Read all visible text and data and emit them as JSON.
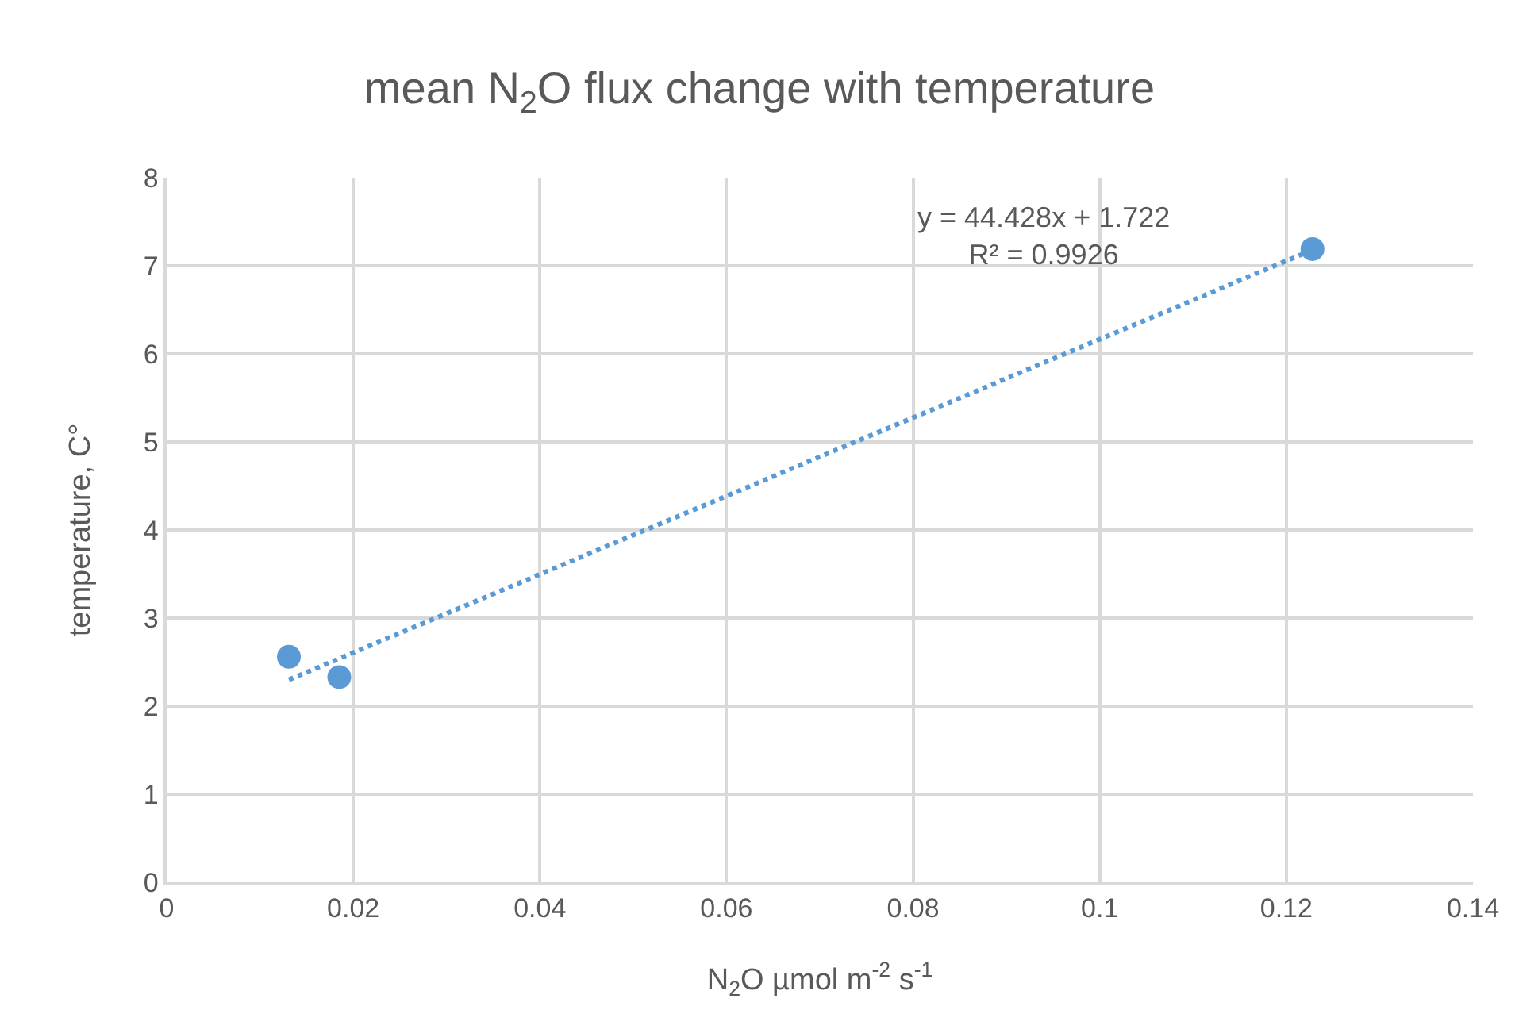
{
  "chart_data": {
    "type": "scatter",
    "title": "mean N$_{2}$O flux change with temperature",
    "xlabel": "N$_{2}$O µmol m$^{-2}$ s$^{-1}$",
    "ylabel": "temperature, C°",
    "series": [
      {
        "color": "#5b9bd5",
        "x": [
          0.0131,
          0.0185,
          0.1228
        ],
        "values": [
          2.56,
          2.33,
          7.19
        ],
        "marker": "circle"
      },
      {
        "type": "line",
        "color": "#5b9bd5",
        "x": [
          0.0131,
          0.1228
        ],
        "values": [
          2.3,
          7.18
        ],
        "marker": "none",
        "line_style": "dotted"
      }
    ],
    "annotations": [
      "y = 44.428x + 1.722\nR² = 0.9926"
    ],
    "xlim": [
      0,
      0.14
    ],
    "xticks": [
      0,
      0.02,
      0.04,
      0.06,
      0.08,
      0.1,
      0.12,
      0.14
    ],
    "ylim": [
      0,
      8
    ],
    "yticks": [
      0,
      1,
      2,
      3,
      4,
      5,
      6,
      7,
      8
    ],
    "grid": true
  }
}
